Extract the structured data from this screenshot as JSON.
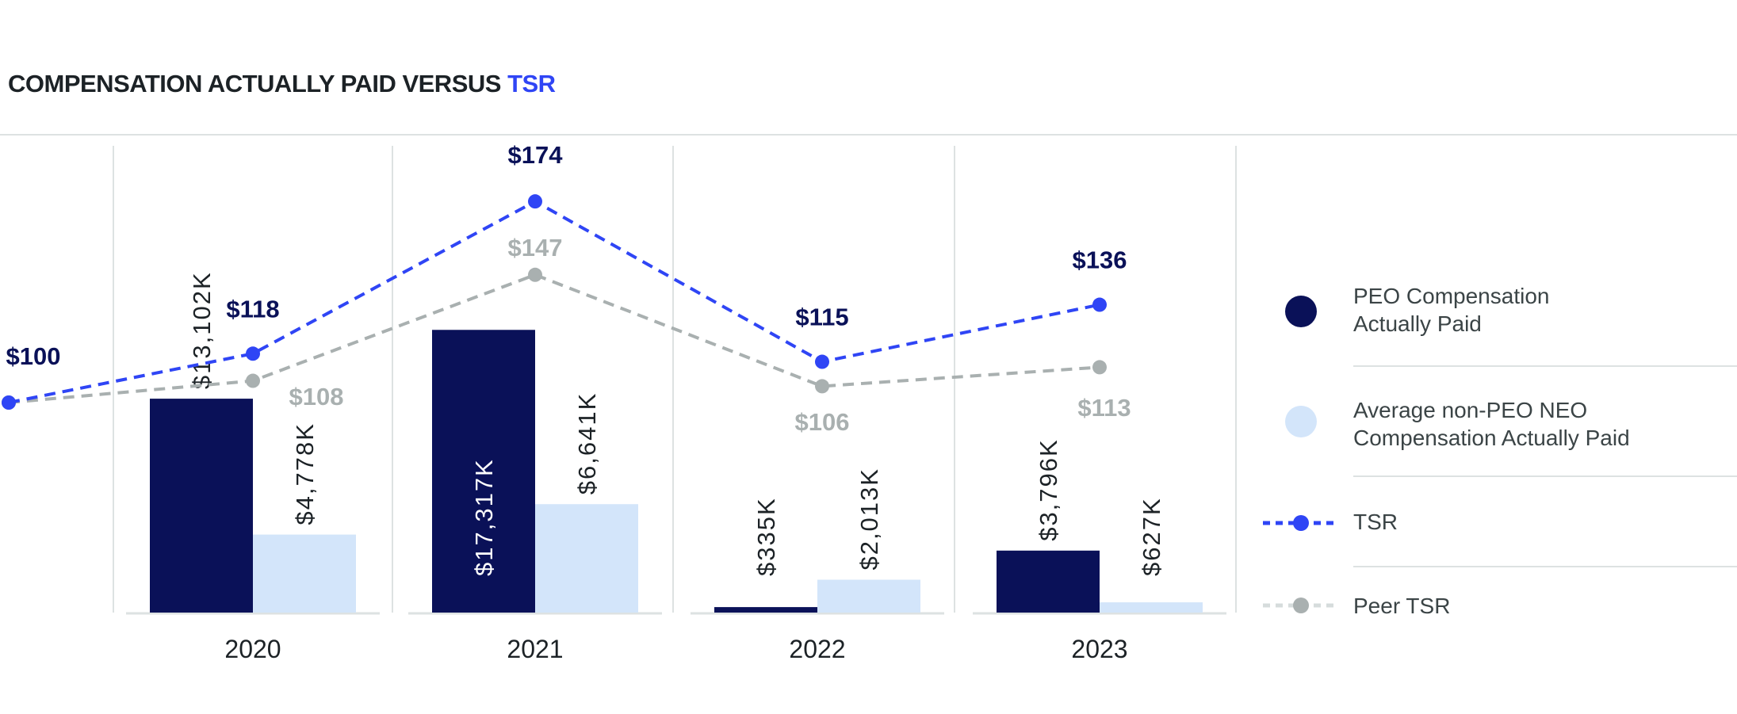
{
  "title": {
    "main": "COMPENSATION ACTUALLY PAID VERSUS ",
    "accent": "TSR"
  },
  "colors": {
    "peo": "#0a1158",
    "neo": "#d3e5fa",
    "tsr": "#2f45f5",
    "peer": "#a9b0b0",
    "title_accent": "#2f45f5"
  },
  "chart_data": {
    "type": "bar+line",
    "categories": [
      "2020",
      "2021",
      "2022",
      "2023"
    ],
    "bar_series": [
      {
        "name": "PEO Compensation Actually Paid",
        "values": [
          13102,
          17317,
          335,
          3796
        ],
        "labels": [
          "$13,102K",
          "$17,317K",
          "$335K",
          "$3,796K"
        ]
      },
      {
        "name": "Average non-PEO NEO Compensation Actually Paid",
        "values": [
          4778,
          6641,
          2013,
          627
        ],
        "labels": [
          "$4,778K",
          "$6,641K",
          "$2,013K",
          "$627K"
        ]
      }
    ],
    "line_x": [
      "start",
      "2020",
      "2021",
      "2022",
      "2023"
    ],
    "line_series": [
      {
        "name": "TSR",
        "values": [
          100,
          118,
          174,
          115,
          136
        ],
        "labels": [
          "$100",
          "$118",
          "$174",
          "$115",
          "$136"
        ]
      },
      {
        "name": "Peer TSR",
        "values": [
          100,
          108,
          147,
          106,
          113
        ],
        "labels": [
          "",
          "$108",
          "$147",
          "$106",
          "$113"
        ]
      }
    ],
    "bar_units": "$K",
    "legend_position": "right",
    "grid": false
  },
  "legend": {
    "items": [
      {
        "label_line1": "PEO Compensation",
        "label_line2": "Actually Paid"
      },
      {
        "label_line1": "Average non-PEO NEO",
        "label_line2": "Compensation Actually Paid"
      },
      {
        "label_line1": "TSR",
        "label_line2": ""
      },
      {
        "label_line1": "Peer TSR",
        "label_line2": ""
      }
    ]
  }
}
